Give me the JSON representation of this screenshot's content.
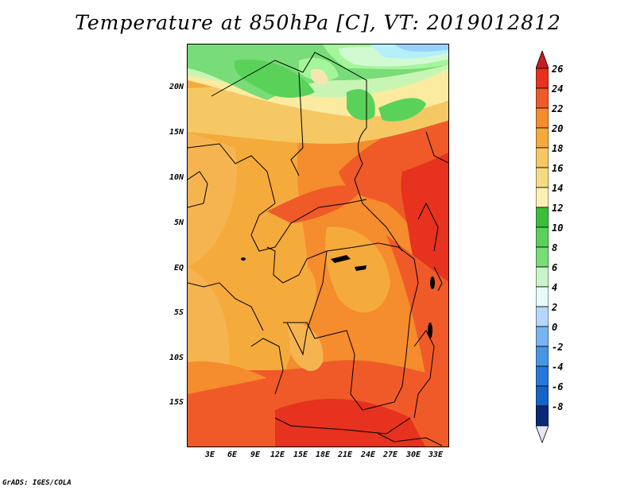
{
  "title": "Temperature at 850hPa [C], VT: 2019012812",
  "footer": "GrADS: IGES/COLA",
  "map": {
    "lat_labels": [
      "20N",
      "15N",
      "10N",
      "5N",
      "EQ",
      "5S",
      "10S",
      "15S"
    ],
    "lon_labels": [
      "3E",
      "6E",
      "9E",
      "12E",
      "15E",
      "18E",
      "21E",
      "24E",
      "27E",
      "30E",
      "33E"
    ]
  },
  "colorbar": {
    "labels": [
      "26",
      "24",
      "22",
      "20",
      "18",
      "16",
      "14",
      "12",
      "10",
      "8",
      "6",
      "4",
      "2",
      "0",
      "-2",
      "-4",
      "-6",
      "-8"
    ],
    "colors": [
      "#c81e1e",
      "#e6321e",
      "#f05a28",
      "#f58c2d",
      "#f5aa3c",
      "#f5c864",
      "#faeba0",
      "#c8f5b4",
      "#3cbe3c",
      "#78dc78",
      "#a5f59b",
      "#d2fad2",
      "#b4f0fa",
      "#96d2fa",
      "#50a5f5",
      "#2882f0",
      "#1464d2",
      "#0a46aa",
      "#0a2882",
      "#e6e6fa"
    ]
  },
  "colors": {
    "green": "#5ad25a",
    "light_green": "#a5f59b",
    "pale": "#faeba0",
    "yellow": "#f5c864",
    "orange_light": "#f5aa3c",
    "orange": "#f58c2d",
    "dark_orange": "#f05a28",
    "red": "#e6321e"
  }
}
